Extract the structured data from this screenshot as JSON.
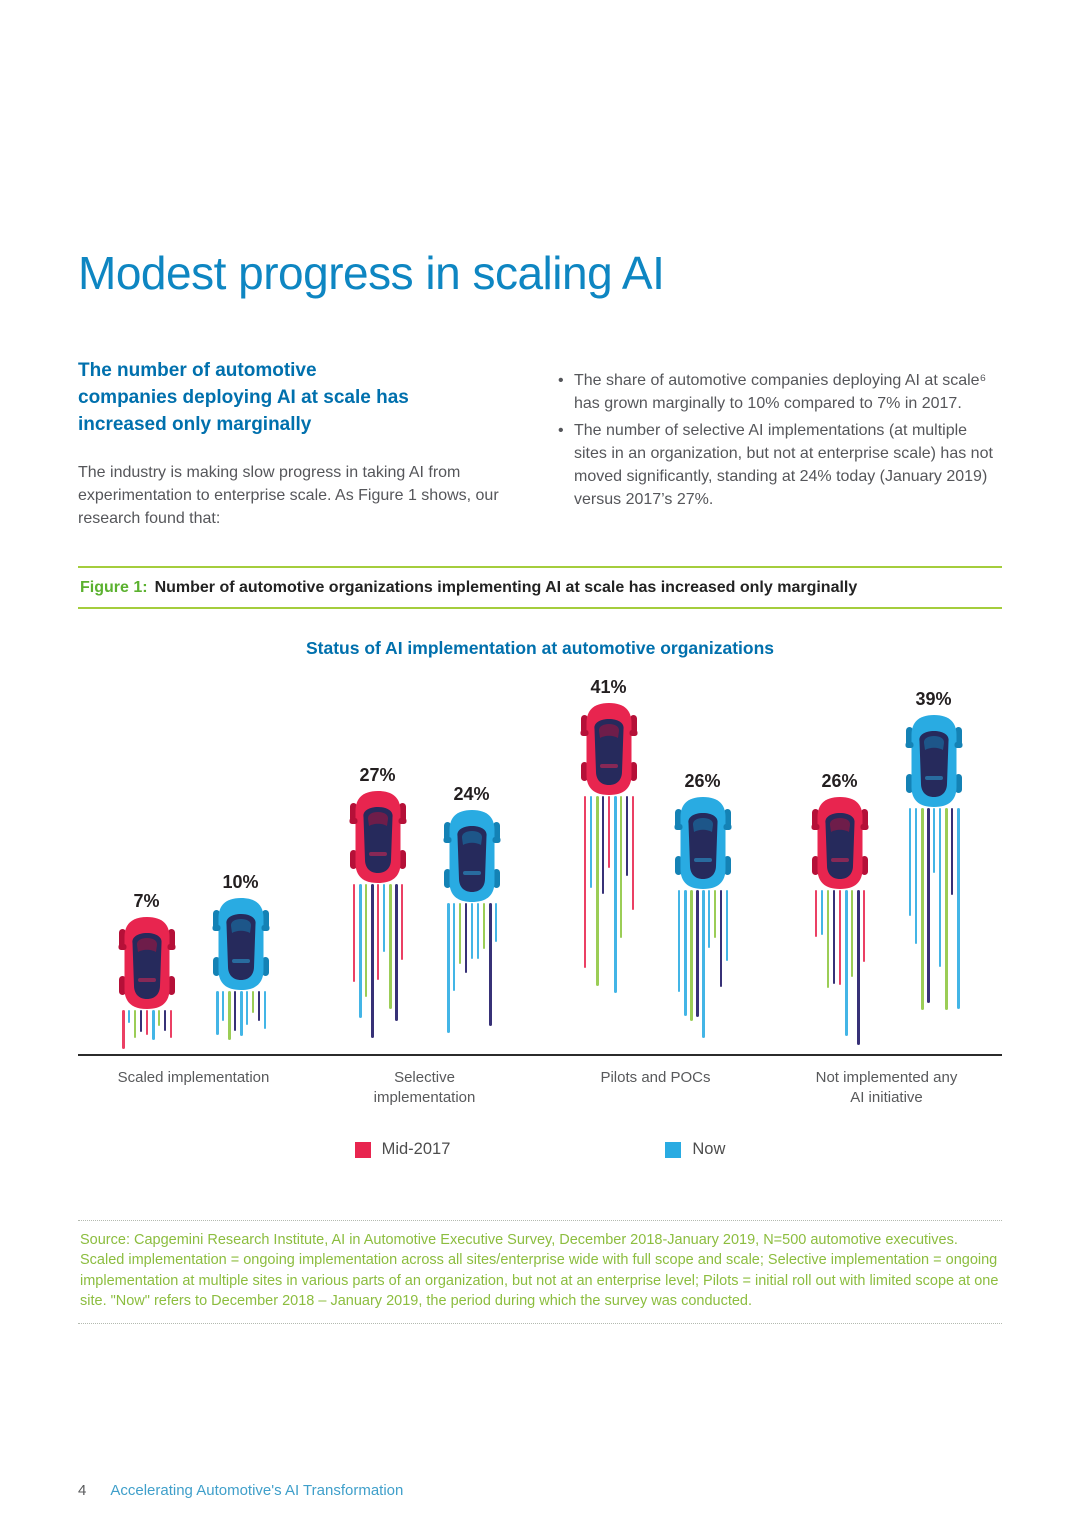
{
  "header": {
    "title": "Modest progress in scaling AI"
  },
  "intro": {
    "subtitle": "The number of automotive companies deploying AI at scale has increased only marginally",
    "paragraph": "The industry is making slow progress in taking AI from experimentation to enterprise scale. As Figure 1 shows, our research found that:",
    "bullets": [
      "The share of automotive companies deploying AI at scale⁶ has grown marginally to 10% compared to 7% in 2017.",
      "The number of selective AI implementations (at multiple sites in an organization, but not at enterprise scale) has not moved significantly, standing at 24% today (January 2019) versus 2017’s 27%."
    ]
  },
  "figure": {
    "label": "Figure 1:",
    "title": "Number of automotive organizations implementing AI at scale has increased only marginally"
  },
  "chart_data": {
    "type": "bar",
    "title": "Status of AI implementation at automotive organizations",
    "categories": [
      "Scaled implementation",
      "Selective implementation",
      "Pilots and POCs",
      "Not implemented any AI initiative"
    ],
    "series": [
      {
        "name": "Mid-2017",
        "color": "#e8254f",
        "dark": "#b51038",
        "values": [
          7,
          27,
          41,
          26
        ]
      },
      {
        "name": "Now",
        "color": "#29abe2",
        "dark": "#1482b5",
        "values": [
          10,
          24,
          26,
          39
        ]
      }
    ],
    "value_suffix": "%",
    "ylim": [
      0,
      45
    ],
    "legend_position": "bottom",
    "window_color": "#262a5c",
    "trail_colors": [
      "#29abe2",
      "#8dc63f",
      "#1b1464"
    ]
  },
  "source": "Source: Capgemini Research Institute, AI in Automotive Executive Survey, December 2018-January 2019, N=500 automotive executives. Scaled implementation = ongoing implementation across all sites/enterprise wide with full scope and scale; Selective implementation = ongoing implementation at multiple sites in various parts of an organization, but not at an enterprise level; Pilots = initial roll out with limited scope at one site. \"Now\" refers to December 2018 – January 2019, the period during which the survey was conducted.",
  "footer": {
    "page_number": "4",
    "title": "Accelerating Automotive's AI Transformation"
  }
}
